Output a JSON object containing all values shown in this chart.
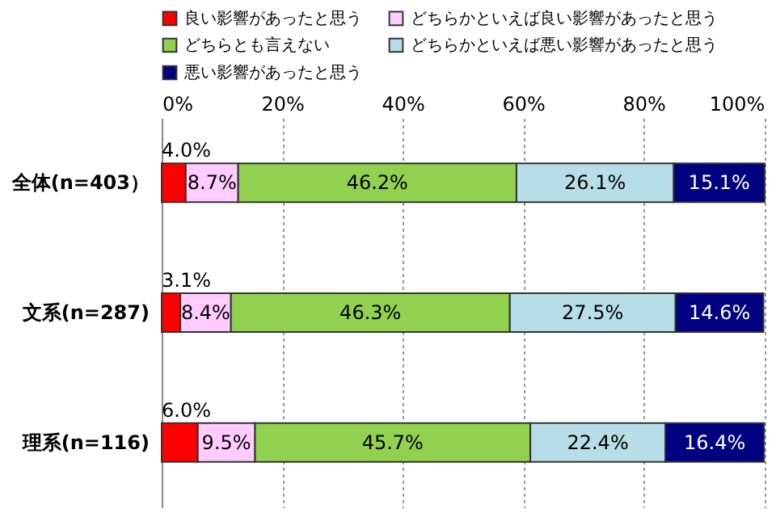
{
  "chart_data": {
    "type": "bar",
    "orientation": "horizontal",
    "stacked": true,
    "categories": [
      "全体(n=403）",
      "文系(n=287)",
      "理系(n=116)"
    ],
    "series": [
      {
        "name": "良い影響があったと思う",
        "color": "#ff0000",
        "values": [
          4.0,
          3.1,
          6.0
        ],
        "value_labels": [
          "4.0%",
          "3.1%",
          "6.0%"
        ]
      },
      {
        "name": "どちらかといえば良い影響があったと思う",
        "color": "#ffccff",
        "values": [
          8.7,
          8.4,
          9.5
        ],
        "value_labels": [
          "8.7%",
          "8.4%",
          "9.5%"
        ]
      },
      {
        "name": "どちらとも言えない",
        "color": "#92d050",
        "values": [
          46.2,
          46.3,
          45.7
        ],
        "value_labels": [
          "46.2%",
          "46.3%",
          "45.7%"
        ]
      },
      {
        "name": "どちらかといえば悪い影響があったと思う",
        "color": "#b7dee8",
        "values": [
          26.1,
          27.5,
          22.4
        ],
        "value_labels": [
          "26.1%",
          "27.5%",
          "22.4%"
        ]
      },
      {
        "name": "悪い影響があったと思う",
        "color": "#000080",
        "values": [
          15.1,
          14.6,
          16.4
        ],
        "value_labels": [
          "15.1%",
          "14.6%",
          "16.4%"
        ]
      }
    ],
    "xlim": [
      0,
      100.1
    ],
    "xticks": [
      {
        "value": 0,
        "label": "0%"
      },
      {
        "value": 20,
        "label": "20%"
      },
      {
        "value": 40,
        "label": "40%"
      },
      {
        "value": 60,
        "label": "60%"
      },
      {
        "value": 80,
        "label": "80%"
      },
      {
        "value": 100,
        "label": "100%"
      }
    ],
    "grid": "x",
    "legend": "top"
  }
}
